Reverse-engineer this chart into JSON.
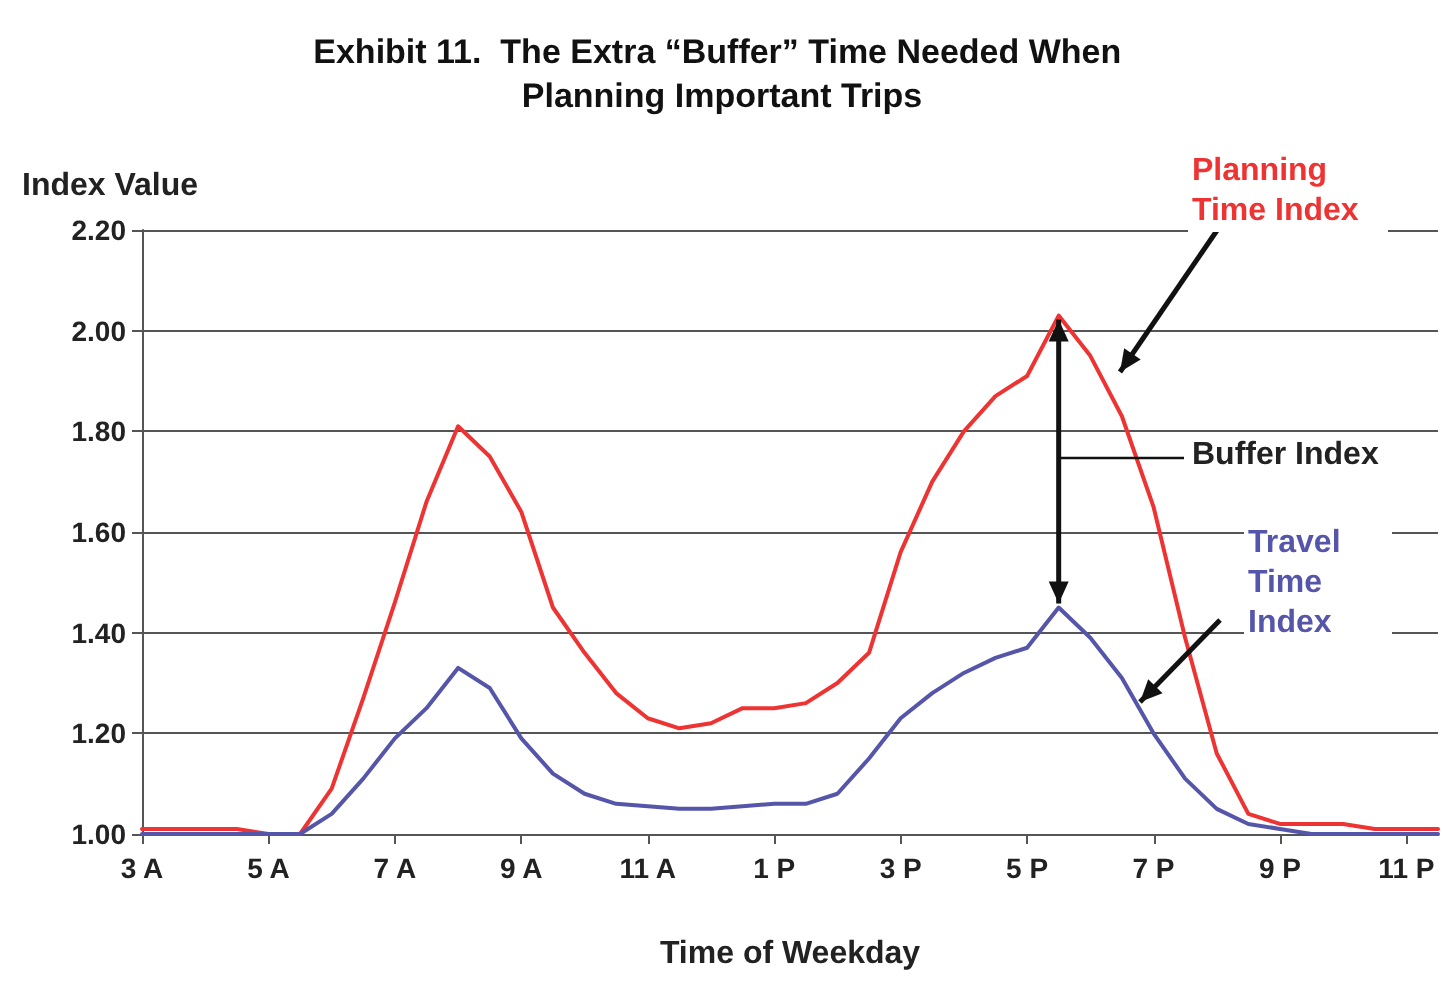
{
  "chart_data": {
    "type": "line",
    "title": "Exhibit 11.  The Extra “Buffer” Time Needed When Planning Important Trips",
    "xlabel": "Time of Weekday",
    "ylabel": "Index Value",
    "annotations": [
      "Buffer Index"
    ],
    "categories": [
      "3 A",
      null,
      null,
      null,
      "5 A",
      null,
      null,
      null,
      "7 A",
      null,
      null,
      null,
      "9 A",
      null,
      null,
      null,
      "11 A",
      null,
      null,
      null,
      "1 P",
      null,
      null,
      null,
      "3 P",
      null,
      null,
      null,
      "5 P",
      null,
      null,
      null,
      "7 P",
      null,
      null,
      null,
      "9 P",
      null,
      null,
      null,
      "11 P",
      null
    ],
    "ylim": [
      1,
      2.2
    ],
    "yticks": [
      {
        "value": 1,
        "label": "1.00"
      },
      {
        "value": 1.2,
        "label": "1.20"
      },
      {
        "value": 1.4,
        "label": "1.40"
      },
      {
        "value": 1.6,
        "label": "1.60"
      },
      {
        "value": 1.8,
        "label": "1.80"
      },
      {
        "value": 2,
        "label": "2.00"
      },
      {
        "value": 2.2,
        "label": "2.20"
      }
    ],
    "grid": "y",
    "marker": "none",
    "line_style": "solid",
    "series": [
      {
        "name": "Planning Time Index",
        "color": "#ee3333",
        "values": [
          1.01,
          1.01,
          1.01,
          1.01,
          1.0,
          1.0,
          1.09,
          1.27,
          1.46,
          1.66,
          1.81,
          1.75,
          1.64,
          1.45,
          1.36,
          1.28,
          1.23,
          1.21,
          1.22,
          1.25,
          1.25,
          1.26,
          1.3,
          1.36,
          1.56,
          1.7,
          1.8,
          1.87,
          1.91,
          2.03,
          1.95,
          1.83,
          1.65,
          1.39,
          1.16,
          1.04,
          1.02,
          1.02,
          1.02,
          1.01,
          1.01,
          1.01
        ]
      },
      {
        "name": "Travel Time Index",
        "color": "#5555aa",
        "values": [
          1.0,
          1.0,
          1.0,
          1.0,
          1.0,
          1.0,
          1.04,
          1.11,
          1.19,
          1.25,
          1.33,
          1.29,
          1.19,
          1.12,
          1.08,
          1.06,
          1.055,
          1.05,
          1.05,
          1.055,
          1.06,
          1.06,
          1.08,
          1.15,
          1.23,
          1.28,
          1.32,
          1.35,
          1.37,
          1.45,
          1.39,
          1.31,
          1.2,
          1.11,
          1.05,
          1.02,
          1.01,
          1.0,
          1.0,
          1.0,
          1.0,
          1.0
        ]
      }
    ]
  }
}
